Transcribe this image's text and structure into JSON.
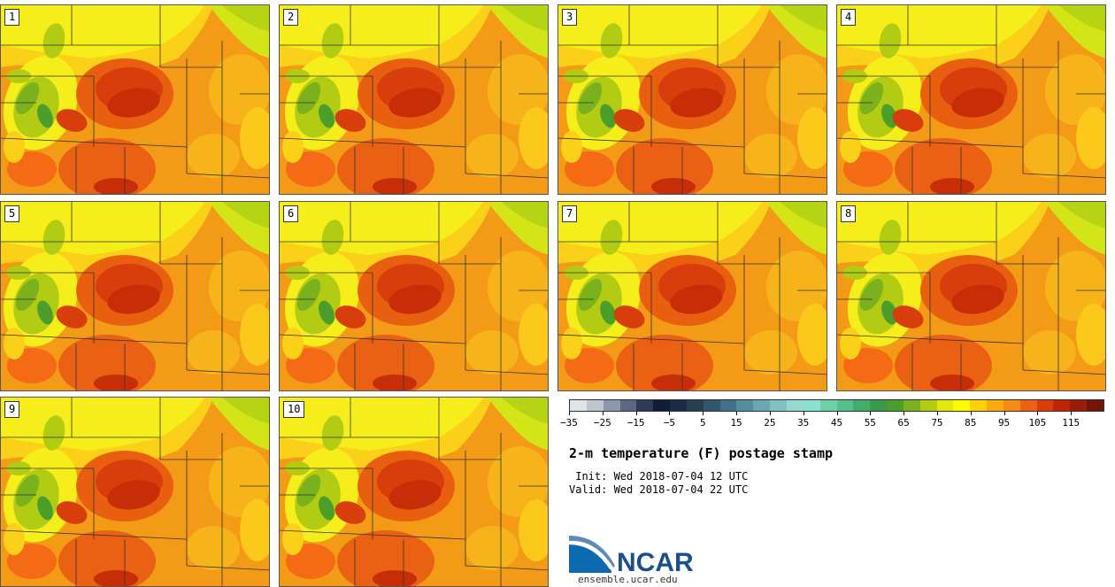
{
  "panels": [
    {
      "label": "1"
    },
    {
      "label": "2"
    },
    {
      "label": "3"
    },
    {
      "label": "4"
    },
    {
      "label": "5"
    },
    {
      "label": "6"
    },
    {
      "label": "7"
    },
    {
      "label": "8"
    },
    {
      "label": "9"
    },
    {
      "label": "10"
    }
  ],
  "title": "2-m temperature (F) postage stamp",
  "init": " Init: Wed 2018-07-04 12 UTC",
  "valid": "Valid: Wed 2018-07-04 22 UTC",
  "logo": {
    "name": "ncar-logo",
    "text": "NCAR"
  },
  "url": "ensemble.ucar.edu",
  "colorbar": {
    "colors": [
      "#dfe3ea",
      "#bec4d0",
      "#8e96ab",
      "#5e6780",
      "#2f3a57",
      "#111c36",
      "#1b2b45",
      "#27404f",
      "#34556a",
      "#427086",
      "#568d9d",
      "#6aa7b1",
      "#80c0c1",
      "#97d8cf",
      "#8be0d0",
      "#6fcfa6",
      "#57bf89",
      "#42ac6b",
      "#3a9a4c",
      "#4b9e2a",
      "#7ab11c",
      "#b2cc14",
      "#e2e80e",
      "#fffb00",
      "#fdd00a",
      "#fbab0e",
      "#f58a14",
      "#ea6114",
      "#d83d0c",
      "#bd2505",
      "#9a1d0b",
      "#711606"
    ],
    "ticks": [
      "−35",
      "−25",
      "−15",
      "−5",
      "5",
      "15",
      "25",
      "35",
      "45",
      "55",
      "65",
      "75",
      "85",
      "95",
      "105",
      "115"
    ]
  }
}
